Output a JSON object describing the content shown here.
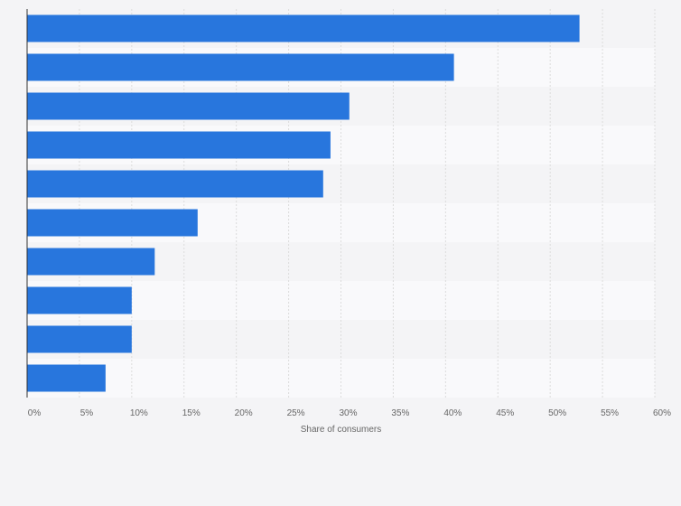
{
  "chart_data": {
    "type": "bar",
    "orientation": "horizontal",
    "categories": [
      "",
      "",
      "",
      "",
      "",
      "",
      "",
      "",
      "",
      ""
    ],
    "values": [
      52.8,
      40.8,
      30.8,
      29.0,
      28.3,
      16.3,
      12.2,
      10.0,
      10.0,
      7.5
    ],
    "x_ticks": [
      "0%",
      "5%",
      "10%",
      "15%",
      "20%",
      "25%",
      "30%",
      "35%",
      "40%",
      "45%",
      "50%",
      "55%",
      "60%"
    ],
    "xlabel": "Share of consumers",
    "ylabel": "",
    "xlim": [
      0,
      60
    ],
    "grid": true,
    "colors": {
      "bar": "#2876dd",
      "band_even": "#f4f4f6",
      "band_odd": "#f9f9fb",
      "grid": "#dcdcdc",
      "axis": "#333333"
    }
  }
}
